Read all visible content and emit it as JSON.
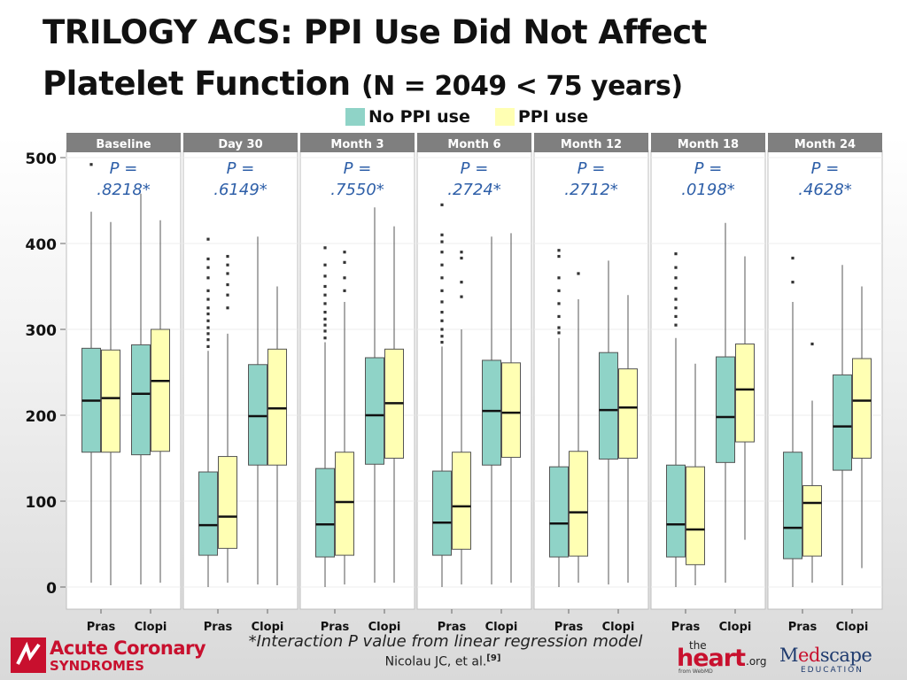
{
  "title": {
    "line1": "TRILOGY ACS: PPI Use Did Not Affect",
    "line2_main": "Platelet Function",
    "line2_small": "(N = 2049 < 75 years)"
  },
  "footnote": "*Interaction P value from linear regression model",
  "citation": {
    "text": "Nicolau JC, et al.",
    "ref": "[9]"
  },
  "logos": {
    "acs_line1": "Acute Coronary",
    "acs_line2": "SYNDROMES",
    "heart_the": "the",
    "heart_main": "heart",
    "heart_org": ".org",
    "heart_from": "from WebMD",
    "medscape_main_a": "M",
    "medscape_main_b": "ed",
    "medscape_main_c": "scape",
    "medscape_sub": "EDUCATION"
  },
  "colors": {
    "no_ppi": "#8fd3c7",
    "ppi": "#ffffb3",
    "strip": "#7f7f7f",
    "pvalue": "#2e5fa8",
    "outlier": "#333333",
    "acs_red": "#c8102e"
  },
  "chart_data": {
    "type": "boxplot",
    "ylim": [
      0,
      520
    ],
    "yticks": [
      0,
      100,
      200,
      300,
      400,
      500
    ],
    "legend": [
      {
        "name": "No PPI use",
        "color": "#8fd3c7"
      },
      {
        "name": "PPI use",
        "color": "#ffffb3"
      }
    ],
    "legend_position": "top",
    "x_categories": [
      "Pras",
      "Clopi"
    ],
    "panels": [
      {
        "label": "Baseline",
        "p_label": "P =",
        "p_value": ".8218*",
        "groups": [
          {
            "drug": "Pras",
            "boxes": [
              {
                "series": "No PPI use",
                "min": 5,
                "q1": 157,
                "median": 217,
                "q3": 278,
                "max": 437,
                "outliers": [
                  492
                ]
              },
              {
                "series": "PPI use",
                "min": 2,
                "q1": 157,
                "median": 220,
                "q3": 276,
                "max": 425,
                "outliers": []
              }
            ]
          },
          {
            "drug": "Clopi",
            "boxes": [
              {
                "series": "No PPI use",
                "min": 3,
                "q1": 154,
                "median": 225,
                "q3": 282,
                "max": 458,
                "outliers": []
              },
              {
                "series": "PPI use",
                "min": 5,
                "q1": 158,
                "median": 240,
                "q3": 300,
                "max": 427,
                "outliers": []
              }
            ]
          }
        ]
      },
      {
        "label": "Day 30",
        "p_label": "P =",
        "p_value": ".6149*",
        "groups": [
          {
            "drug": "Pras",
            "boxes": [
              {
                "series": "No PPI use",
                "min": 0,
                "q1": 37,
                "median": 72,
                "q3": 134,
                "max": 275,
                "outliers": [
                  280,
                  288,
                  295,
                  302,
                  310,
                  318,
                  325,
                  335,
                  345,
                  360,
                  372,
                  382,
                  405
                ]
              },
              {
                "series": "PPI use",
                "min": 5,
                "q1": 45,
                "median": 82,
                "q3": 152,
                "max": 295,
                "outliers": [
                  325,
                  340,
                  352,
                  365,
                  375,
                  385
                ]
              }
            ]
          },
          {
            "drug": "Clopi",
            "boxes": [
              {
                "series": "No PPI use",
                "min": 3,
                "q1": 142,
                "median": 199,
                "q3": 259,
                "max": 408,
                "outliers": []
              },
              {
                "series": "PPI use",
                "min": 2,
                "q1": 142,
                "median": 208,
                "q3": 277,
                "max": 350,
                "outliers": []
              }
            ]
          }
        ]
      },
      {
        "label": "Month 3",
        "p_label": "P =",
        "p_value": ".7550*",
        "groups": [
          {
            "drug": "Pras",
            "boxes": [
              {
                "series": "No PPI use",
                "min": 0,
                "q1": 35,
                "median": 73,
                "q3": 138,
                "max": 285,
                "outliers": [
                  290,
                  298,
                  305,
                  312,
                  320,
                  330,
                  340,
                  350,
                  362,
                  375,
                  395
                ]
              },
              {
                "series": "PPI use",
                "min": 3,
                "q1": 37,
                "median": 99,
                "q3": 157,
                "max": 332,
                "outliers": [
                  345,
                  360,
                  378,
                  390
                ]
              }
            ]
          },
          {
            "drug": "Clopi",
            "boxes": [
              {
                "series": "No PPI use",
                "min": 5,
                "q1": 143,
                "median": 200,
                "q3": 267,
                "max": 442,
                "outliers": []
              },
              {
                "series": "PPI use",
                "min": 5,
                "q1": 150,
                "median": 214,
                "q3": 277,
                "max": 420,
                "outliers": []
              }
            ]
          }
        ]
      },
      {
        "label": "Month 6",
        "p_label": "P =",
        "p_value": ".2724*",
        "groups": [
          {
            "drug": "Pras",
            "boxes": [
              {
                "series": "No PPI use",
                "min": 0,
                "q1": 37,
                "median": 75,
                "q3": 135,
                "max": 280,
                "outliers": [
                  285,
                  292,
                  300,
                  310,
                  320,
                  332,
                  345,
                  360,
                  375,
                  390,
                  402,
                  410,
                  445
                ]
              },
              {
                "series": "PPI use",
                "min": 3,
                "q1": 44,
                "median": 94,
                "q3": 157,
                "max": 300,
                "outliers": [
                  338,
                  355,
                  383,
                  390
                ]
              }
            ]
          },
          {
            "drug": "Clopi",
            "boxes": [
              {
                "series": "No PPI use",
                "min": 3,
                "q1": 142,
                "median": 205,
                "q3": 264,
                "max": 408,
                "outliers": []
              },
              {
                "series": "PPI use",
                "min": 5,
                "q1": 151,
                "median": 203,
                "q3": 261,
                "max": 412,
                "outliers": []
              }
            ]
          }
        ]
      },
      {
        "label": "Month 12",
        "p_label": "P =",
        "p_value": ".2712*",
        "groups": [
          {
            "drug": "Pras",
            "boxes": [
              {
                "series": "No PPI use",
                "min": 0,
                "q1": 35,
                "median": 74,
                "q3": 140,
                "max": 290,
                "outliers": [
                  296,
                  302,
                  315,
                  330,
                  345,
                  360,
                  385,
                  392
                ]
              },
              {
                "series": "PPI use",
                "min": 5,
                "q1": 36,
                "median": 87,
                "q3": 158,
                "max": 335,
                "outliers": [
                  365
                ]
              }
            ]
          },
          {
            "drug": "Clopi",
            "boxes": [
              {
                "series": "No PPI use",
                "min": 3,
                "q1": 149,
                "median": 206,
                "q3": 273,
                "max": 380,
                "outliers": []
              },
              {
                "series": "PPI use",
                "min": 5,
                "q1": 150,
                "median": 209,
                "q3": 254,
                "max": 340,
                "outliers": []
              }
            ]
          }
        ]
      },
      {
        "label": "Month 18",
        "p_label": "P =",
        "p_value": ".0198*",
        "groups": [
          {
            "drug": "Pras",
            "boxes": [
              {
                "series": "No PPI use",
                "min": 0,
                "q1": 35,
                "median": 73,
                "q3": 142,
                "max": 290,
                "outliers": [
                  305,
                  315,
                  325,
                  335,
                  348,
                  360,
                  372,
                  388
                ]
              },
              {
                "series": "PPI use",
                "min": 2,
                "q1": 26,
                "median": 67,
                "q3": 140,
                "max": 260,
                "outliers": []
              }
            ]
          },
          {
            "drug": "Clopi",
            "boxes": [
              {
                "series": "No PPI use",
                "min": 5,
                "q1": 145,
                "median": 198,
                "q3": 268,
                "max": 424,
                "outliers": []
              },
              {
                "series": "PPI use",
                "min": 55,
                "q1": 169,
                "median": 230,
                "q3": 283,
                "max": 385,
                "outliers": []
              }
            ]
          }
        ]
      },
      {
        "label": "Month 24",
        "p_label": "P =",
        "p_value": ".4628*",
        "groups": [
          {
            "drug": "Pras",
            "boxes": [
              {
                "series": "No PPI use",
                "min": 0,
                "q1": 33,
                "median": 69,
                "q3": 157,
                "max": 332,
                "outliers": [
                  355,
                  383
                ]
              },
              {
                "series": "PPI use",
                "min": 5,
                "q1": 36,
                "median": 98,
                "q3": 118,
                "max": 217,
                "outliers": [
                  283
                ]
              }
            ]
          },
          {
            "drug": "Clopi",
            "boxes": [
              {
                "series": "No PPI use",
                "min": 2,
                "q1": 136,
                "median": 187,
                "q3": 247,
                "max": 375,
                "outliers": []
              },
              {
                "series": "PPI use",
                "min": 22,
                "q1": 150,
                "median": 217,
                "q3": 266,
                "max": 350,
                "outliers": []
              }
            ]
          }
        ]
      }
    ]
  }
}
